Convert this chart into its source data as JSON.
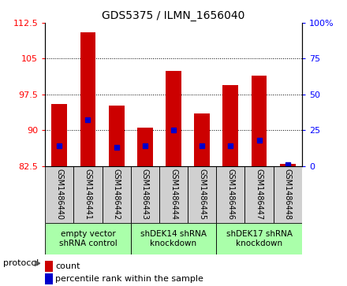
{
  "title": "GDS5375 / ILMN_1656040",
  "samples": [
    "GSM1486440",
    "GSM1486441",
    "GSM1486442",
    "GSM1486443",
    "GSM1486444",
    "GSM1486445",
    "GSM1486446",
    "GSM1486447",
    "GSM1486448"
  ],
  "count_values": [
    95.5,
    110.5,
    95.2,
    90.5,
    102.5,
    93.5,
    99.5,
    101.5,
    83.0
  ],
  "percentile_values": [
    14,
    32,
    13,
    14,
    25,
    14,
    14,
    18,
    1
  ],
  "ylim_left": [
    82.5,
    112.5
  ],
  "ylim_right": [
    0,
    100
  ],
  "yticks_left": [
    82.5,
    90,
    97.5,
    105,
    112.5
  ],
  "yticks_right": [
    0,
    25,
    50,
    75,
    100
  ],
  "ytick_labels_left": [
    "82.5",
    "90",
    "97.5",
    "105",
    "112.5"
  ],
  "ytick_labels_right": [
    "0",
    "25",
    "50",
    "75",
    "100%"
  ],
  "bar_color": "#CC0000",
  "percentile_color": "#0000CC",
  "bar_bottom": 82.5,
  "groups": [
    {
      "label": "empty vector\nshRNA control",
      "start": 0,
      "end": 3,
      "color": "#aaffaa"
    },
    {
      "label": "shDEK14 shRNA\nknockdown",
      "start": 3,
      "end": 6,
      "color": "#aaffaa"
    },
    {
      "label": "shDEK17 shRNA\nknockdown",
      "start": 6,
      "end": 9,
      "color": "#aaffaa"
    }
  ],
  "grid_lines": [
    90,
    97.5,
    105
  ],
  "legend_count_label": "count",
  "legend_pct_label": "percentile rank within the sample",
  "protocol_label": "protocol",
  "xtick_bg": "#d0d0d0",
  "group_bg": "#aaffaa"
}
